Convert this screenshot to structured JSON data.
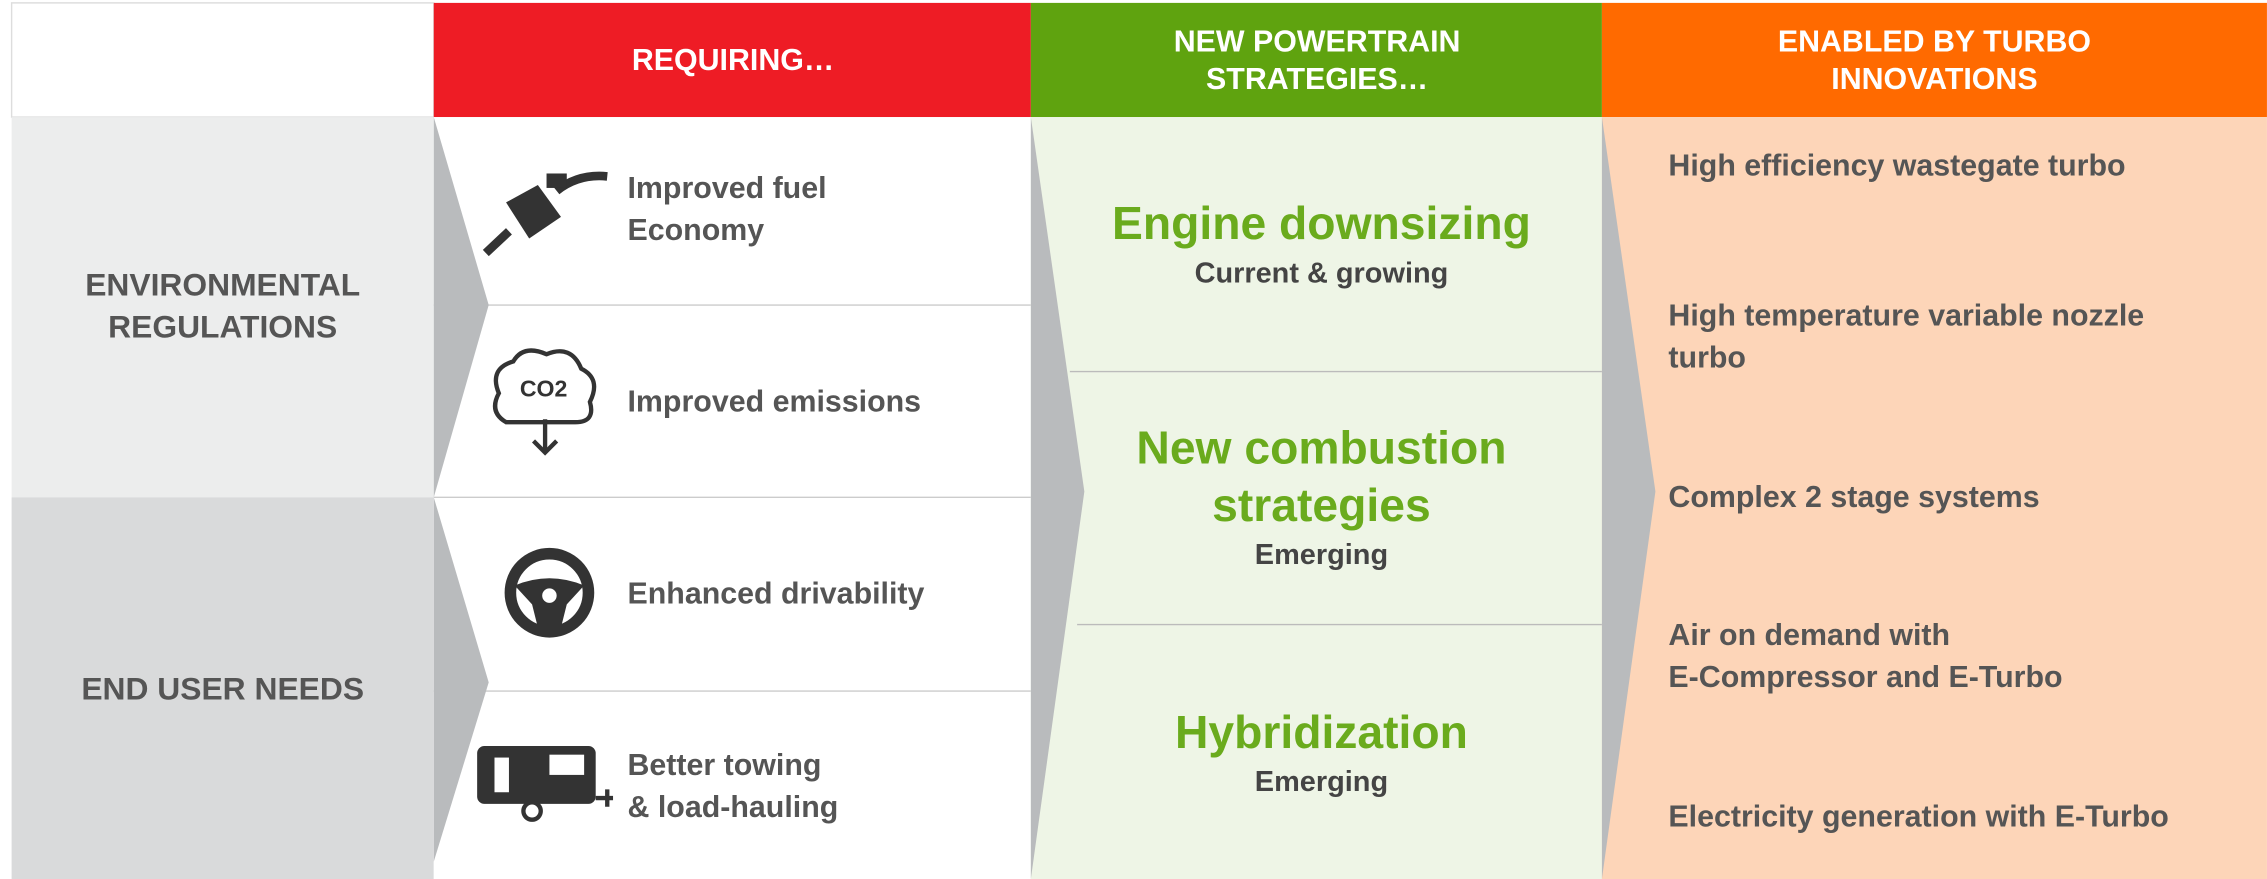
{
  "header": {
    "col1": [
      "REQUIRING…"
    ],
    "col2": [
      "NEW POWERTRAIN",
      "STRATEGIES…"
    ],
    "col3": [
      "ENABLED BY TURBO",
      "INNOVATIONS"
    ]
  },
  "drivers": [
    [
      "ENVIRONMENTAL",
      "REGULATIONS"
    ],
    [
      "END USER NEEDS"
    ]
  ],
  "requirements": [
    [
      "Improved fuel",
      "Economy"
    ],
    [
      "Improved emissions"
    ],
    [
      "Enhanced drivability"
    ],
    [
      "Better towing",
      "& load-hauling"
    ]
  ],
  "strategies": [
    {
      "title": [
        "Engine downsizing"
      ],
      "status": "Current & growing"
    },
    {
      "title": [
        "New combustion",
        "strategies"
      ],
      "status": "Emerging"
    },
    {
      "title": [
        "Hybridization"
      ],
      "status": "Emerging"
    }
  ],
  "innovations": [
    [
      "High efficiency wastegate turbo"
    ],
    [
      "High temperature variable nozzle",
      "turbo"
    ],
    [
      "Complex 2 stage systems"
    ],
    [
      "Air on demand with",
      "E-Compressor and E-Turbo"
    ],
    [
      "Electricity generation with E-Turbo"
    ]
  ],
  "icon_text": "CO2"
}
